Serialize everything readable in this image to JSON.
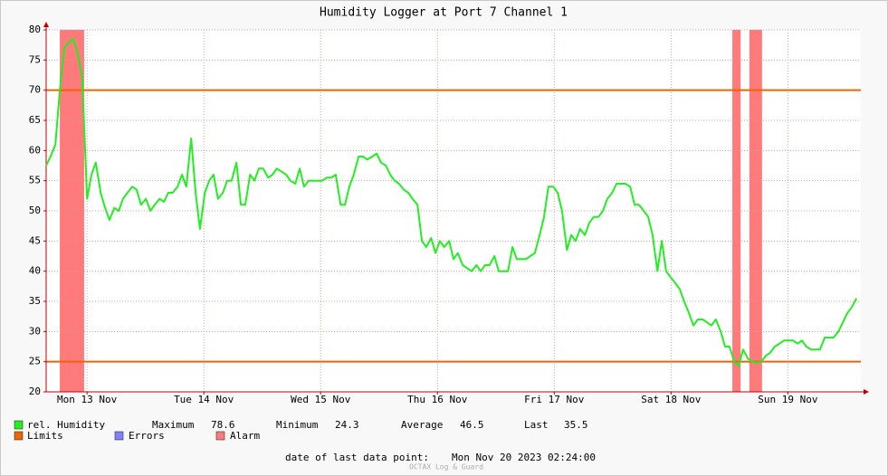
{
  "chart_data": {
    "type": "line",
    "title": "Humidity Logger at Port 7 Channel 1",
    "xlim": [
      3.6,
      171
    ],
    "xticks": [
      {
        "value": 12,
        "label": "Mon 13 Nov"
      },
      {
        "value": 36,
        "label": "Tue 14 Nov"
      },
      {
        "value": 60,
        "label": "Wed 15 Nov"
      },
      {
        "value": 84,
        "label": "Thu 16 Nov"
      },
      {
        "value": 108,
        "label": "Fri 17 Nov"
      },
      {
        "value": 132,
        "label": "Sat 18 Nov"
      },
      {
        "value": 156,
        "label": "Sun 19 Nov"
      }
    ],
    "ylim": [
      20,
      80
    ],
    "yticks": [
      20,
      25,
      30,
      35,
      40,
      45,
      50,
      55,
      60,
      65,
      70,
      75,
      80
    ],
    "grid": true,
    "x": [
      3.6,
      4.5,
      5.5,
      6.4,
      7.3,
      8.3,
      9.2,
      10.1,
      11.0,
      12.0,
      12.9,
      13.8,
      14.8,
      15.7,
      16.6,
      17.6,
      18.5,
      19.4,
      20.3,
      21.3,
      22.2,
      23.1,
      24.1,
      25.0,
      25.9,
      26.9,
      27.8,
      28.7,
      29.6,
      30.6,
      31.5,
      32.4,
      33.4,
      34.3,
      35.2,
      36.2,
      37.1,
      38.0,
      38.9,
      39.9,
      40.8,
      41.7,
      42.7,
      43.6,
      44.5,
      45.5,
      46.4,
      47.3,
      48.2,
      49.2,
      50.1,
      51.0,
      52.0,
      52.9,
      53.8,
      54.8,
      55.7,
      56.6,
      57.5,
      58.5,
      59.4,
      60.3,
      61.3,
      62.2,
      63.1,
      64.1,
      65.0,
      65.9,
      66.8,
      67.8,
      68.7,
      69.6,
      70.6,
      71.5,
      72.4,
      73.4,
      74.3,
      75.2,
      76.1,
      77.1,
      78.0,
      78.9,
      79.9,
      80.8,
      81.7,
      82.7,
      83.6,
      84.5,
      85.4,
      86.4,
      87.3,
      88.2,
      89.2,
      90.1,
      91.0,
      92.0,
      92.9,
      93.8,
      94.7,
      95.7,
      96.6,
      97.5,
      98.5,
      99.4,
      100.3,
      101.3,
      102.2,
      103.1,
      104.0,
      105.0,
      105.9,
      106.8,
      107.8,
      108.7,
      109.6,
      110.6,
      111.5,
      112.4,
      113.3,
      114.3,
      115.2,
      116.1,
      117.1,
      118.0,
      118.9,
      119.9,
      120.8,
      121.7,
      122.6,
      123.6,
      124.5,
      125.4,
      126.4,
      127.3,
      128.2,
      129.2,
      130.1,
      131.0,
      131.9,
      132.9,
      133.8,
      134.7,
      135.7,
      136.6,
      137.5,
      138.5,
      139.4,
      140.3,
      141.2,
      142.2,
      143.1,
      144.0,
      145.0,
      145.9,
      146.8,
      147.8,
      148.7,
      149.6,
      150.5,
      151.5,
      152.4,
      153.3,
      154.3,
      155.2,
      156.1,
      157.1,
      158.0,
      158.9,
      159.8,
      160.8,
      161.7,
      162.6,
      163.6,
      164.5,
      165.4,
      166.4,
      167.3,
      168.2,
      169.1,
      170.1
    ],
    "series": [
      {
        "name": "rel. Humidity",
        "color": "#22ee22",
        "values": [
          57.5,
          59,
          61,
          70,
          77,
          78,
          78.5,
          76,
          72,
          52,
          56,
          58,
          53,
          50.5,
          48.5,
          50.5,
          50,
          52,
          53,
          54,
          53.5,
          51,
          52,
          50,
          51,
          52,
          51.5,
          53,
          53,
          54,
          56,
          54,
          62,
          53,
          47,
          53,
          55,
          56,
          52,
          53,
          55,
          55,
          58,
          51,
          51,
          56,
          55,
          57,
          57,
          55.5,
          56,
          57,
          56.5,
          56,
          55,
          54.5,
          57,
          54,
          55,
          55,
          55,
          55,
          55.5,
          55.5,
          56,
          51,
          51,
          54,
          56,
          59,
          59,
          58.5,
          59,
          59.5,
          58,
          57.5,
          56,
          55,
          54.5,
          53.5,
          53,
          52,
          51,
          45,
          44,
          45.5,
          43,
          45,
          44,
          45,
          42,
          43,
          41,
          40.5,
          40,
          41,
          40,
          41,
          41,
          42.5,
          40,
          40,
          40,
          44,
          42,
          42,
          42,
          42.5,
          43,
          46,
          49,
          54,
          54,
          53,
          50,
          43.5,
          46,
          45,
          47,
          46,
          48,
          49,
          49,
          50,
          52,
          53,
          54.5,
          54.5,
          54.5,
          54,
          51,
          51,
          50,
          49,
          46,
          40,
          45,
          40,
          39,
          38,
          37,
          35,
          33,
          31,
          32,
          32,
          31.5,
          31,
          32,
          30,
          27.5,
          27.5,
          25,
          24.3,
          27,
          25.5,
          25,
          24.8,
          25,
          26,
          26.5,
          27.5,
          28,
          28.5,
          28.5,
          28.5,
          28,
          28.5,
          27.5,
          27,
          27,
          27,
          29,
          29,
          29,
          30,
          31.5,
          33,
          34,
          35.5
        ]
      }
    ],
    "limits": {
      "name": "Limits",
      "color": "#f06400",
      "values": [
        70,
        25
      ]
    },
    "errors": {
      "name": "Errors",
      "color": "#7f7fff"
    },
    "alarm": {
      "name": "Alarm",
      "color": "#ff7a7a",
      "ranges": [
        [
          6.4,
          11.4
        ],
        [
          144.6,
          146.3
        ],
        [
          148.1,
          150.7
        ]
      ]
    },
    "stats": [
      {
        "label": "Maximum",
        "value": 78.6
      },
      {
        "label": "Minimum",
        "value": 24.3
      },
      {
        "label": "Average",
        "value": 46.5
      },
      {
        "label": "Last",
        "value": 35.5
      }
    ],
    "footer": {
      "label": "date of last data point:",
      "value": "Mon Nov 20 2023 02:24:00"
    },
    "watermark": "OCTAX Log & Guard"
  }
}
